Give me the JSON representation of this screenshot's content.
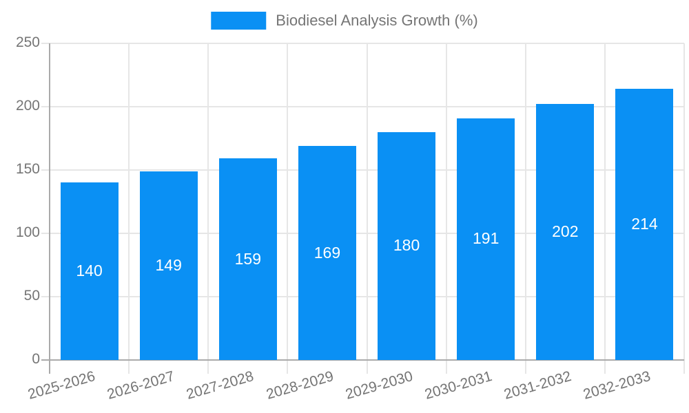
{
  "legend": {
    "label": "Biodiesel Analysis Growth (%)"
  },
  "colors": {
    "bar": "#0a90f4",
    "grid": "#e6e6e6",
    "axis": "#aaaaaa",
    "tick_text": "#757575",
    "bar_label_text": "#ffffff"
  },
  "chart_data": {
    "type": "bar",
    "title": "Biodiesel Analysis Growth (%)",
    "categories": [
      "2025-2026",
      "2026-2027",
      "2027-2028",
      "2028-2029",
      "2029-2030",
      "2030-2031",
      "2031-2032",
      "2032-2033"
    ],
    "values": [
      140,
      149,
      159,
      169,
      180,
      191,
      202,
      214
    ],
    "xlabel": "",
    "ylabel": "",
    "ylim": [
      0,
      250
    ],
    "yticks": [
      0,
      50,
      100,
      150,
      200,
      250
    ],
    "grid": true,
    "legend_position": "top-center",
    "bar_label_position": "inside-center"
  }
}
